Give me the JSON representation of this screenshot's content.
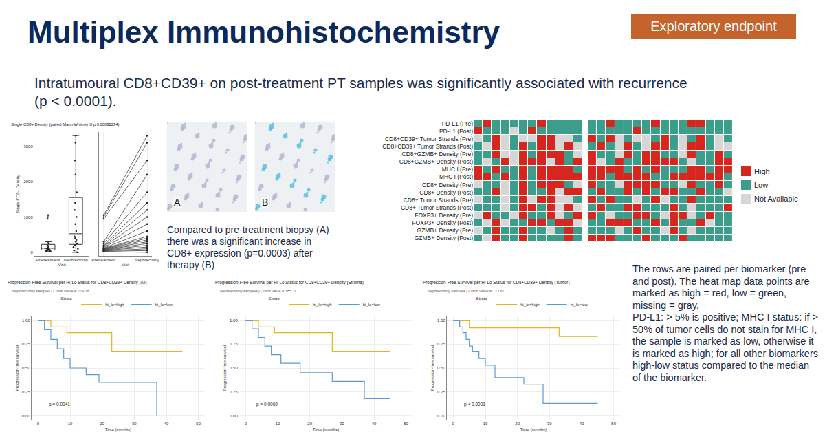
{
  "header": {
    "title": "Multiplex Immunohistochemistry",
    "badge": "Exploratory endpoint"
  },
  "subtitle": "Intratumoural CD8+CD39+ on post-treatment PT samples was significantly associated with recurrence (p < 0.0001).",
  "images": [
    {
      "label": "A"
    },
    {
      "label": "B"
    }
  ],
  "caption": "Compared to pre-treatment biopsy (A) there was a significant increase in CD8+ expression (p=0.0003) after therapy (B)",
  "note": [
    "The rows are paired per biomarker (pre and post). The heat map data points are marked as high = red, low = green, missing = gray.",
    "PD-L1: > 5% is positive; MHC I status: if > 50% of tumor cells do not stain for MHC I, the sample is marked as low, otherwise it is marked as high; for all other biomarkers high-low status compared to the median of the biomarker."
  ],
  "chart_data": [
    {
      "type": "box",
      "title": "Single CD8+ Density (paired Mann-Whitney U p 0.00032234)",
      "xtitle": "Visit",
      "ytitle": "Single CD8+ Density",
      "categories": [
        "Pretreatment",
        "Nephrectomy"
      ],
      "pre": [
        20,
        30,
        40,
        50,
        60,
        70,
        80,
        90,
        100,
        110,
        120,
        140,
        160,
        180,
        200,
        250,
        300,
        950,
        1000,
        1050
      ],
      "post": [
        0,
        50,
        100,
        150,
        200,
        250,
        300,
        350,
        400,
        450,
        600,
        800,
        1000,
        1200,
        1400,
        1700,
        2200,
        2600,
        3100,
        3300
      ],
      "ylim": [
        -100,
        3400
      ],
      "yticks": [
        0,
        1000,
        2000,
        3000
      ]
    },
    {
      "type": "heatmap",
      "rows": [
        "PD-L1 (Pre)",
        "PD-L1 (Post)",
        "CD8+CD39+ Tumor Strands (Pre)",
        "CD8+CD39+ Tumor Strands (Post)",
        "CD8+GZMB+ Density (Pre)",
        "CD8+GZMB+ Density (Post)",
        "MHC I (Pre)",
        "MHC I (Post)",
        "CD8+ Density (Pre)",
        "CD8+ Density (Post)",
        "CD8+ Tumor Strands (Pre)",
        "CD8+ Tumor Strands (Post)",
        "FOXP3+ Density (Pre)",
        "FOXP3+ Density (Post)",
        "GZMB+ Density (Pre)",
        "GZMB+ Density (Post)"
      ],
      "levels": [
        {
          "name": "High",
          "color": "#d7261e"
        },
        {
          "name": "Low",
          "color": "#3a9e8a"
        },
        {
          "name": "Not Available",
          "color": "#d6d6d6"
        }
      ],
      "cells": [
        [
          [
            1,
            0,
            1,
            1,
            1,
            1,
            1,
            0,
            1,
            1,
            1,
            1
          ],
          [
            0,
            1,
            1,
            1,
            2,
            1,
            0,
            1,
            1,
            1,
            1,
            1
          ],
          [
            2,
            1,
            0,
            2,
            1,
            2,
            2,
            0,
            0,
            2,
            2,
            1
          ],
          [
            1,
            2,
            0,
            2,
            1,
            0,
            1,
            0,
            0,
            2,
            0,
            2
          ],
          [
            1,
            1,
            0,
            2,
            2,
            0,
            1,
            0,
            0,
            0,
            1,
            2
          ],
          [
            1,
            2,
            1,
            0,
            2,
            0,
            0,
            0,
            2,
            0,
            1,
            0
          ],
          [
            0,
            1,
            0,
            1,
            1,
            0,
            1,
            0,
            0,
            0,
            0,
            1
          ],
          [
            0,
            0,
            1,
            0,
            1,
            0,
            1,
            0,
            0,
            0,
            0,
            0
          ],
          [
            2,
            1,
            1,
            2,
            1,
            0,
            1,
            0,
            0,
            0,
            1,
            2
          ],
          [
            1,
            1,
            0,
            2,
            1,
            0,
            1,
            1,
            0,
            2,
            0,
            0
          ],
          [
            2,
            1,
            1,
            2,
            1,
            0,
            2,
            0,
            0,
            2,
            2,
            1
          ],
          [
            1,
            1,
            1,
            2,
            1,
            0,
            0,
            1,
            0,
            2,
            0,
            2
          ],
          [
            2,
            0,
            1,
            1,
            2,
            0,
            1,
            1,
            0,
            2,
            1,
            0
          ],
          [
            1,
            2,
            0,
            2,
            1,
            1,
            0,
            0,
            1,
            0,
            0,
            2
          ],
          [
            2,
            1,
            0,
            1,
            1,
            0,
            1,
            1,
            2,
            1,
            0,
            1
          ],
          [
            1,
            2,
            0,
            1,
            1,
            0,
            1,
            1,
            1,
            1,
            0,
            1
          ]
        ],
        [
          [
            1,
            1,
            0,
            1,
            1,
            1,
            1,
            0,
            1,
            1,
            1,
            0,
            0,
            1,
            1,
            1
          ],
          [
            1,
            1,
            1,
            1,
            1,
            0,
            1,
            1,
            1,
            1,
            1,
            1,
            1,
            1,
            1,
            1
          ],
          [
            0,
            1,
            0,
            2,
            1,
            2,
            2,
            1,
            0,
            1,
            2,
            1,
            0,
            1,
            2,
            1
          ],
          [
            1,
            0,
            1,
            2,
            0,
            1,
            2,
            0,
            0,
            1,
            2,
            0,
            0,
            1,
            2,
            2
          ],
          [
            0,
            1,
            1,
            2,
            0,
            1,
            0,
            0,
            1,
            1,
            2,
            0,
            1,
            1,
            0,
            1
          ],
          [
            0,
            2,
            1,
            0,
            1,
            1,
            0,
            0,
            0,
            0,
            1,
            2,
            1,
            1,
            0,
            0
          ],
          [
            0,
            0,
            0,
            0,
            1,
            0,
            1,
            0,
            1,
            1,
            1,
            0,
            0,
            1,
            0,
            0
          ],
          [
            0,
            0,
            1,
            0,
            0,
            0,
            0,
            1,
            1,
            0,
            0,
            0,
            0,
            0,
            0,
            1
          ],
          [
            0,
            1,
            1,
            2,
            0,
            0,
            0,
            0,
            1,
            1,
            2,
            0,
            1,
            1,
            0,
            1
          ],
          [
            1,
            0,
            1,
            1,
            0,
            1,
            0,
            1,
            0,
            0,
            1,
            1,
            0,
            1,
            1,
            2
          ],
          [
            0,
            1,
            0,
            1,
            1,
            2,
            1,
            0,
            2,
            1,
            1,
            0,
            1,
            1,
            1,
            1
          ],
          [
            1,
            0,
            1,
            1,
            0,
            0,
            1,
            1,
            1,
            0,
            1,
            2,
            1,
            1,
            1,
            0
          ],
          [
            0,
            1,
            2,
            1,
            1,
            0,
            0,
            1,
            2,
            0,
            0,
            2,
            1,
            0,
            1,
            1
          ],
          [
            1,
            1,
            0,
            0,
            0,
            1,
            1,
            0,
            1,
            0,
            1,
            1,
            0,
            2,
            1,
            1
          ],
          [
            1,
            1,
            1,
            2,
            1,
            0,
            1,
            1,
            2,
            0,
            1,
            2,
            1,
            1,
            1,
            1
          ],
          [
            0,
            0,
            0,
            1,
            1,
            1,
            0,
            1,
            1,
            1,
            0,
            1,
            1,
            1,
            1,
            1
          ]
        ]
      ]
    },
    {
      "type": "line",
      "title": "Progression-Free Survival per Hi-Lo Status for CD8+CD39+ Density (All)",
      "subtitle": "Nephrectomy samples | Cutoff value = 229.28",
      "legend_title": "Strata",
      "legend": "top",
      "line_style": "step",
      "xtitle": "Time (months)",
      "ytitle": "Progression-free survival",
      "annotation": "p = 0.0041",
      "series": [
        {
          "name": "hi_lo=high",
          "color": "#e3b51e",
          "x": [
            0,
            4,
            9,
            23,
            45
          ],
          "values": [
            1,
            0.93,
            0.87,
            0.67,
            0.67
          ]
        },
        {
          "name": "hi_lo=low",
          "color": "#5b9bd5",
          "x": [
            0,
            2,
            4,
            6,
            8,
            10,
            15,
            19,
            36,
            37
          ],
          "values": [
            1,
            0.9,
            0.8,
            0.7,
            0.6,
            0.5,
            0.43,
            0.35,
            0.35,
            0
          ]
        }
      ],
      "xlim": [
        -2,
        52
      ],
      "xticks": [
        0,
        10,
        20,
        30,
        40,
        50
      ],
      "ylim": [
        -0.04,
        1.04
      ],
      "yticks": [
        {
          "value": 0,
          "label": "0.00"
        },
        {
          "value": 0.25,
          "label": "0.25"
        },
        {
          "value": 0.5,
          "label": "0.50"
        },
        {
          "value": 0.75,
          "label": "0.75"
        },
        {
          "value": 1,
          "label": "1.00"
        }
      ]
    },
    {
      "type": "line",
      "title": "Progression-Free Survival per Hi-Lo Status for CD8+CD39+ Density (Stroma)",
      "subtitle": "Nephrectomy samples | Cutoff value = 385.11",
      "legend_title": "Strata",
      "legend": "top",
      "line_style": "step",
      "xtitle": "Time (months)",
      "ytitle": "Progression-free survival",
      "annotation": "p = 0.0069",
      "series": [
        {
          "name": "hi_lo=high",
          "color": "#e3b51e",
          "x": [
            0,
            4,
            9,
            27,
            45
          ],
          "values": [
            1,
            0.93,
            0.87,
            0.67,
            0.67
          ]
        },
        {
          "name": "hi_lo=low",
          "color": "#5b9bd5",
          "x": [
            0,
            2,
            4,
            6,
            8,
            11,
            17,
            27,
            37,
            45
          ],
          "values": [
            1,
            0.91,
            0.82,
            0.73,
            0.64,
            0.55,
            0.45,
            0.36,
            0.18,
            0.18
          ]
        }
      ],
      "xlim": [
        -2,
        52
      ],
      "xticks": [
        0,
        10,
        20,
        30,
        40,
        50
      ],
      "ylim": [
        -0.04,
        1.04
      ],
      "yticks": [
        {
          "value": 0,
          "label": "0.00"
        },
        {
          "value": 0.25,
          "label": "0.25"
        },
        {
          "value": 0.5,
          "label": "0.50"
        },
        {
          "value": 0.75,
          "label": "0.75"
        },
        {
          "value": 1,
          "label": "1.00"
        }
      ]
    },
    {
      "type": "line",
      "title": "Progression-Free Survival per Hi-Lo Status for CD8+CD39+ Density (Tumor)",
      "subtitle": "Nephrectomy samples | Cutoff value = 123.67",
      "legend_title": "Strata",
      "legend": "top",
      "line_style": "step",
      "xtitle": "Time (months)",
      "ytitle": "Progression-free survival",
      "annotation": "p < 0.0001",
      "series": [
        {
          "name": "hi_lo=high",
          "color": "#e3b51e",
          "x": [
            0,
            5,
            33,
            45
          ],
          "values": [
            1,
            0.92,
            0.83,
            0.83
          ]
        },
        {
          "name": "hi_lo=low",
          "color": "#5b9bd5",
          "x": [
            0,
            2,
            3,
            4,
            5,
            6,
            8,
            10,
            13,
            22,
            28,
            45
          ],
          "values": [
            1,
            0.93,
            0.87,
            0.8,
            0.73,
            0.67,
            0.6,
            0.53,
            0.4,
            0.33,
            0.13,
            0.13
          ]
        }
      ],
      "xlim": [
        -2,
        52
      ],
      "xticks": [
        0,
        10,
        20,
        30,
        40,
        50
      ],
      "ylim": [
        -0.04,
        1.04
      ],
      "yticks": [
        {
          "value": 0,
          "label": "0.00"
        },
        {
          "value": 0.25,
          "label": "0.25"
        },
        {
          "value": 0.5,
          "label": "0.50"
        },
        {
          "value": 0.75,
          "label": "0.75"
        },
        {
          "value": 1,
          "label": "1.00"
        }
      ]
    }
  ]
}
